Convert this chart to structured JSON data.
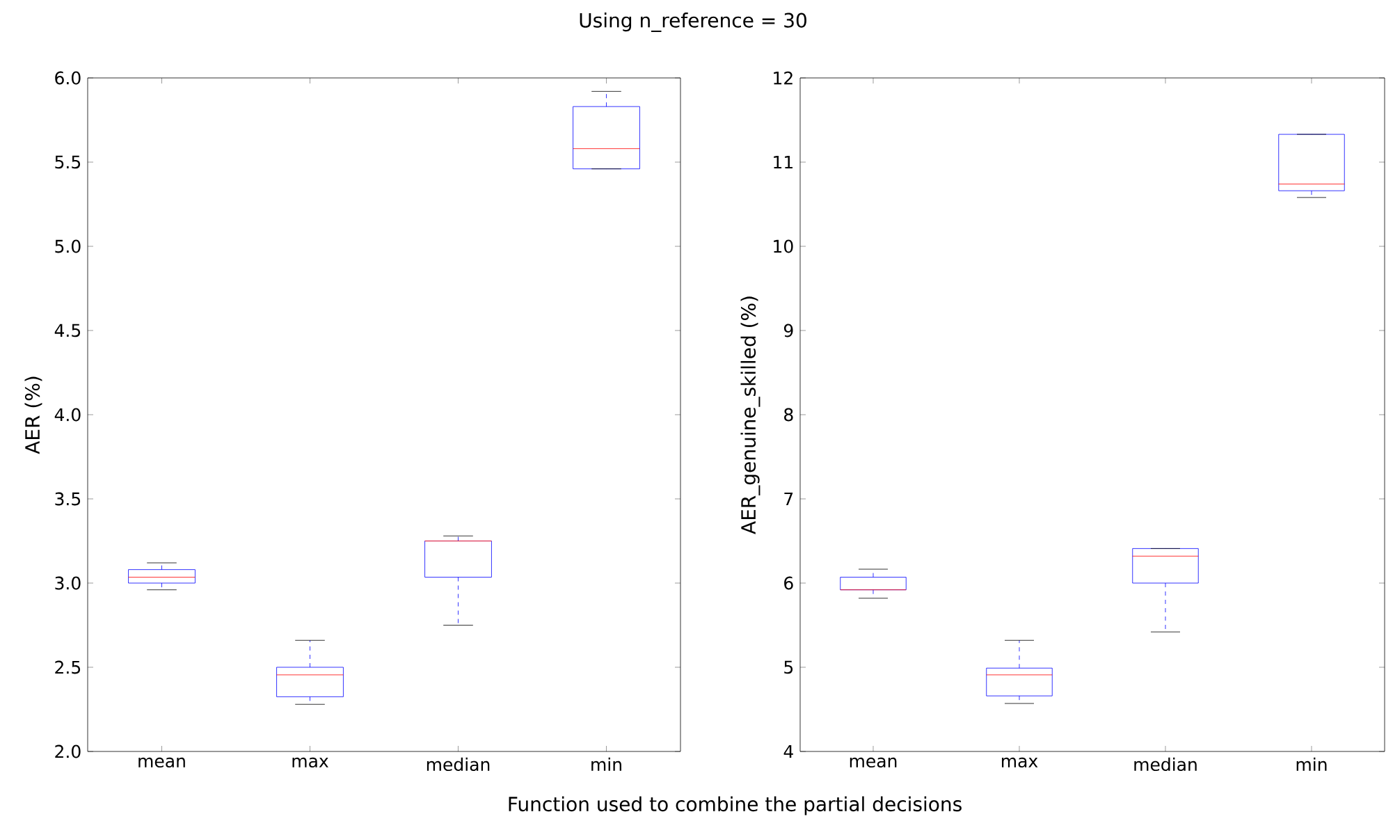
{
  "chart_data": [
    {
      "type": "box",
      "title": "Using n_reference = 30",
      "xlabel": "Function used to combine the partial decisions",
      "ylabel": "AER (%)",
      "categories": [
        "mean",
        "max",
        "median",
        "min"
      ],
      "ylim": [
        2.0,
        6.0
      ],
      "yticks": [
        {
          "value": 2.0,
          "label": "2.0"
        },
        {
          "value": 2.5,
          "label": "2.5"
        },
        {
          "value": 3.0,
          "label": "3.0"
        },
        {
          "value": 3.5,
          "label": "3.5"
        },
        {
          "value": 4.0,
          "label": "4.0"
        },
        {
          "value": 4.5,
          "label": "4.5"
        },
        {
          "value": 5.0,
          "label": "5.0"
        },
        {
          "value": 5.5,
          "label": "5.5"
        },
        {
          "value": 6.0,
          "label": "6.0"
        }
      ],
      "boxes": [
        {
          "low": 2.96,
          "q1": 3.0,
          "median": 3.035,
          "q3": 3.08,
          "high": 3.12
        },
        {
          "low": 2.28,
          "q1": 2.325,
          "median": 2.455,
          "q3": 2.5,
          "high": 2.66
        },
        {
          "low": 2.75,
          "q1": 3.035,
          "median": 3.25,
          "q3": 3.25,
          "high": 3.28
        },
        {
          "low": 5.46,
          "q1": 5.46,
          "median": 5.58,
          "q3": 5.83,
          "high": 5.92
        }
      ]
    },
    {
      "type": "box",
      "ylabel": "AER_genuine_skilled (%)",
      "categories": [
        "mean",
        "max",
        "median",
        "min"
      ],
      "ylim": [
        4,
        12
      ],
      "yticks": [
        4,
        5,
        6,
        7,
        8,
        9,
        10,
        11,
        12
      ],
      "boxes": [
        {
          "low": 5.82,
          "q1": 5.92,
          "median": 5.92,
          "q3": 6.07,
          "high": 6.165
        },
        {
          "low": 4.57,
          "q1": 4.66,
          "median": 4.91,
          "q3": 4.99,
          "high": 5.32
        },
        {
          "low": 5.42,
          "q1": 6.0,
          "median": 6.32,
          "q3": 6.41,
          "high": 6.41
        },
        {
          "low": 10.58,
          "q1": 10.66,
          "median": 10.74,
          "q3": 11.33,
          "high": 11.33
        }
      ]
    }
  ]
}
